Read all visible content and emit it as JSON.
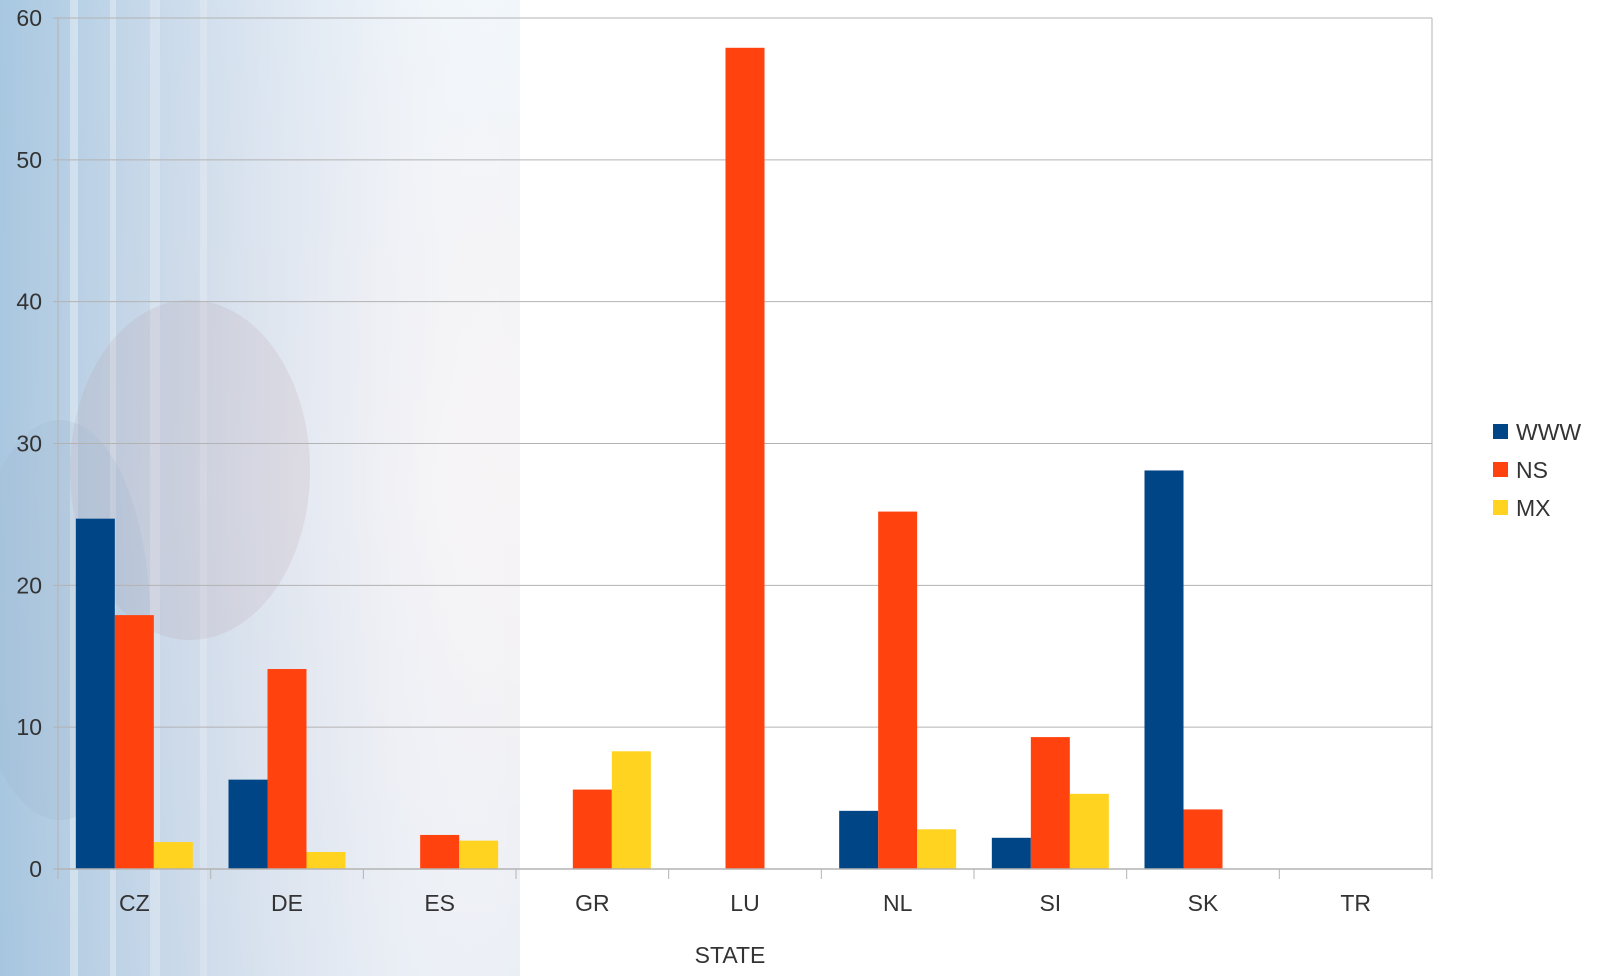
{
  "chart_data": {
    "type": "bar",
    "title": "",
    "xlabel": "STATE",
    "ylabel": "",
    "categories": [
      "CZ",
      "DE",
      "ES",
      "GR",
      "LU",
      "NL",
      "SI",
      "SK",
      "TR"
    ],
    "series": [
      {
        "name": "WWW",
        "color": "#004586",
        "values": [
          24.7,
          6.3,
          0,
          0,
          0,
          4.1,
          2.2,
          28.1,
          0
        ]
      },
      {
        "name": "NS",
        "color": "#FF420E",
        "values": [
          17.9,
          14.1,
          2.4,
          5.6,
          57.9,
          25.2,
          9.3,
          4.2,
          0
        ]
      },
      {
        "name": "MX",
        "color": "#FFD320",
        "values": [
          1.9,
          1.2,
          2.0,
          8.3,
          0,
          2.8,
          5.3,
          0,
          0
        ]
      }
    ],
    "ylim": [
      0,
      60
    ],
    "yticks": [
      0,
      10,
      20,
      30,
      40,
      50,
      60
    ],
    "grid": true,
    "legend_position": "right",
    "background": "photo-faded-left",
    "colors": {
      "grid": "#b3b3b3",
      "axis": "#b3b3b3",
      "text": "#333333"
    }
  }
}
